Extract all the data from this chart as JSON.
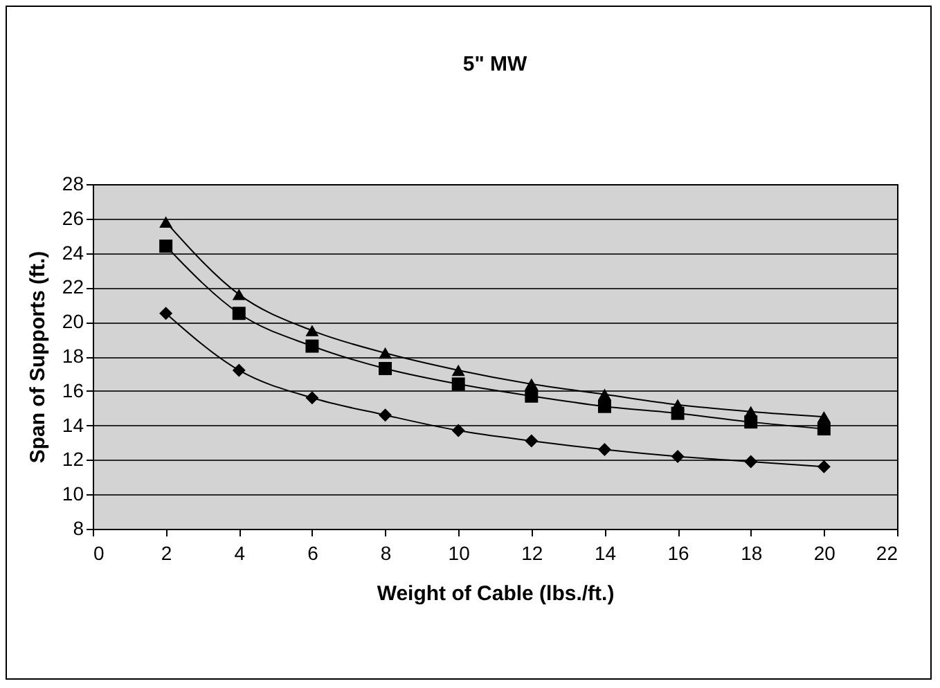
{
  "chart_data": {
    "type": "line",
    "title": "5\" MW",
    "xlabel": "Weight of Cable (lbs./ft.)",
    "ylabel": "Span of Supports (ft.)",
    "x": [
      2,
      4,
      6,
      8,
      10,
      12,
      14,
      16,
      18,
      20
    ],
    "series": [
      {
        "color": "#000000",
        "marker": "diamond",
        "values": [
          20.5,
          17.2,
          15.6,
          14.6,
          13.7,
          13.1,
          12.6,
          12.2,
          11.9,
          11.6
        ]
      },
      {
        "color": "#000000",
        "marker": "square",
        "values": [
          24.4,
          20.5,
          18.6,
          17.3,
          16.4,
          15.7,
          15.1,
          14.7,
          14.2,
          13.8
        ]
      },
      {
        "color": "#000000",
        "marker": "triangle",
        "values": [
          25.8,
          21.6,
          19.5,
          18.2,
          17.2,
          16.4,
          15.8,
          15.2,
          14.8,
          14.5
        ]
      }
    ],
    "xlim": [
      0,
      22
    ],
    "xticks": [
      0,
      2,
      4,
      6,
      8,
      10,
      12,
      14,
      16,
      18,
      20,
      22
    ],
    "ylim": [
      8,
      28
    ],
    "yticks": [
      8,
      10,
      12,
      14,
      16,
      18,
      20,
      22,
      24,
      26,
      28
    ],
    "grid": "y",
    "legend": false,
    "line_style": "solid"
  }
}
